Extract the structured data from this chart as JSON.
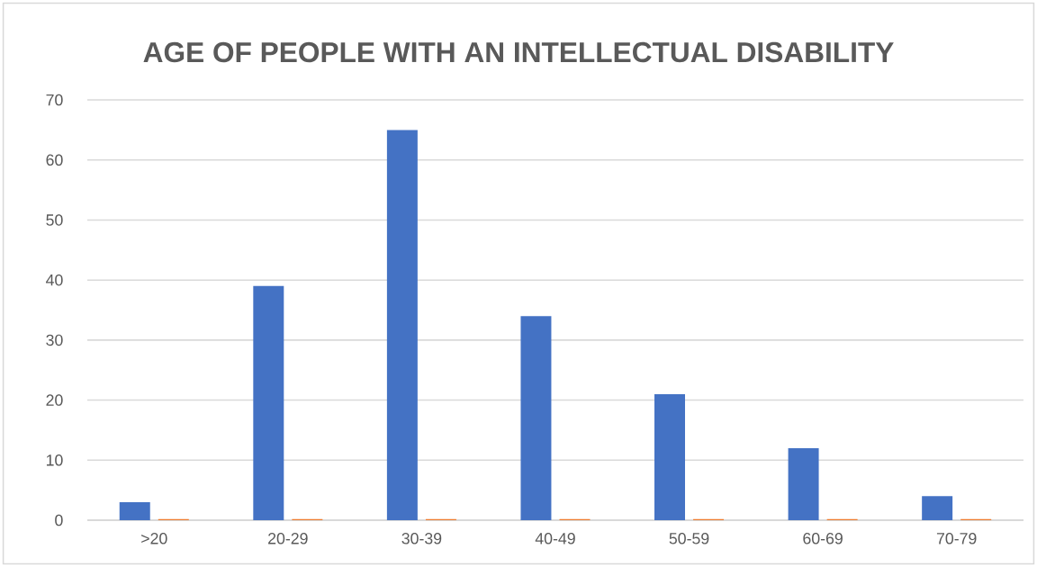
{
  "chart_data": {
    "type": "bar",
    "title": "AGE OF PEOPLE WITH AN INTELLECTUAL DISABILITY",
    "categories": [
      ">20",
      "20-29",
      "30-39",
      "40-49",
      "50-59",
      "60-69",
      "70-79"
    ],
    "series": [
      {
        "color": "#4472c4",
        "values": [
          3,
          39,
          65,
          34,
          21,
          12,
          4
        ]
      },
      {
        "color": "#ed7d31",
        "values": [
          0.2,
          0.2,
          0.2,
          0.2,
          0.2,
          0.2,
          0.2
        ]
      }
    ],
    "ylim": [
      0,
      70
    ],
    "yticks": [
      0,
      10,
      20,
      30,
      40,
      50,
      60,
      70
    ],
    "grid": "y"
  }
}
